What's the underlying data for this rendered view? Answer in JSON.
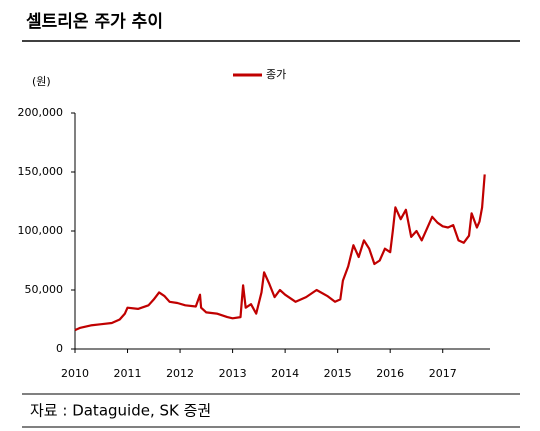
{
  "chart_data": {
    "type": "line",
    "title": "셀트리온 주가 추이",
    "y_label": "(원)",
    "source": "자료 : Dataguide, SK 증권",
    "x": [
      2010.0,
      2010.1,
      2010.3,
      2010.5,
      2010.7,
      2010.85,
      2010.95,
      2011.0,
      2011.2,
      2011.4,
      2011.5,
      2011.6,
      2011.7,
      2011.8,
      2011.95,
      2012.1,
      2012.3,
      2012.38,
      2012.4,
      2012.5,
      2012.7,
      2012.9,
      2013.0,
      2013.15,
      2013.2,
      2013.25,
      2013.35,
      2013.45,
      2013.55,
      2013.6,
      2013.7,
      2013.8,
      2013.9,
      2014.0,
      2014.2,
      2014.4,
      2014.6,
      2014.8,
      2014.95,
      2015.05,
      2015.1,
      2015.2,
      2015.3,
      2015.4,
      2015.5,
      2015.6,
      2015.7,
      2015.8,
      2015.9,
      2016.0,
      2016.05,
      2016.1,
      2016.2,
      2016.3,
      2016.4,
      2016.5,
      2016.6,
      2016.7,
      2016.8,
      2016.9,
      2017.0,
      2017.1,
      2017.2,
      2017.3,
      2017.4,
      2017.5,
      2017.55,
      2017.65,
      2017.7,
      2017.75,
      2017.8
    ],
    "series": [
      {
        "name": "종가",
        "color": "#c00000",
        "values": [
          16000,
          18000,
          20000,
          21000,
          22000,
          25000,
          30000,
          35000,
          34000,
          37000,
          42000,
          48000,
          45000,
          40000,
          39000,
          37000,
          36000,
          46000,
          35000,
          31000,
          30000,
          27000,
          26000,
          27000,
          54000,
          35000,
          38000,
          30000,
          48000,
          65000,
          55000,
          44000,
          50000,
          46000,
          40000,
          44000,
          50000,
          45000,
          40000,
          42000,
          58000,
          70000,
          88000,
          78000,
          92000,
          85000,
          72000,
          75000,
          85000,
          82000,
          100000,
          120000,
          110000,
          118000,
          95000,
          100000,
          92000,
          102000,
          112000,
          107000,
          104000,
          103000,
          105000,
          92000,
          90000,
          96000,
          115000,
          103000,
          108000,
          120000,
          148000
        ]
      }
    ],
    "xlim": [
      2010,
      2017.9
    ],
    "xticks": [
      2010,
      2011,
      2012,
      2013,
      2014,
      2015,
      2016,
      2017
    ],
    "ylim": [
      0,
      200000
    ],
    "yticks": [
      0,
      {
        "value": 50000,
        "label": "50,000"
      },
      {
        "value": 100000,
        "label": "100,000"
      },
      {
        "value": 150000,
        "label": "150,000"
      },
      {
        "value": 200000,
        "label": "200,000"
      }
    ]
  }
}
